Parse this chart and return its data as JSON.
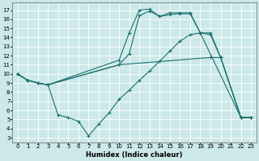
{
  "xlabel": "Humidex (Indice chaleur)",
  "bg_color": "#cce8e8",
  "grid_color": "#ffffff",
  "line_color": "#1a7070",
  "xlim": [
    -0.5,
    23.5
  ],
  "ylim": [
    2.5,
    17.8
  ],
  "xticks": [
    0,
    1,
    2,
    3,
    4,
    5,
    6,
    7,
    8,
    9,
    10,
    11,
    12,
    13,
    14,
    15,
    16,
    17,
    18,
    19,
    20,
    21,
    22,
    23
  ],
  "yticks": [
    3,
    4,
    5,
    6,
    7,
    8,
    9,
    10,
    11,
    12,
    13,
    14,
    15,
    16,
    17
  ],
  "lines": [
    {
      "x": [
        0,
        1,
        2,
        3,
        10,
        11,
        12,
        13,
        14,
        15,
        16,
        17,
        18,
        22,
        23
      ],
      "y": [
        10,
        9.3,
        9.0,
        8.8,
        11.5,
        14.5,
        17.0,
        17.1,
        16.3,
        16.7,
        16.7,
        16.7,
        14.5,
        5.2,
        5.2
      ]
    },
    {
      "x": [
        0,
        1,
        2,
        3,
        10,
        11,
        12,
        13,
        14,
        15,
        16,
        17,
        18,
        19,
        20,
        22,
        23
      ],
      "y": [
        10,
        9.3,
        9.0,
        8.8,
        11.0,
        12.2,
        16.4,
        16.9,
        16.3,
        16.5,
        16.6,
        16.6,
        14.5,
        14.5,
        11.8,
        5.2,
        5.2
      ]
    },
    {
      "x": [
        0,
        1,
        2,
        3,
        10,
        19,
        20,
        22,
        23
      ],
      "y": [
        10,
        9.3,
        9.0,
        8.8,
        11.0,
        11.8,
        11.8,
        5.2,
        5.2
      ]
    },
    {
      "x": [
        0,
        1,
        2,
        3,
        4,
        5,
        6,
        7,
        8,
        9,
        10,
        11,
        12,
        13,
        14,
        15,
        16,
        17,
        18,
        19,
        20,
        22,
        23
      ],
      "y": [
        10,
        9.3,
        9.0,
        8.8,
        5.5,
        5.2,
        4.8,
        3.2,
        4.5,
        5.7,
        7.2,
        8.2,
        9.3,
        10.3,
        11.4,
        12.5,
        13.6,
        14.3,
        14.5,
        14.3,
        11.8,
        5.2,
        5.2
      ]
    }
  ]
}
